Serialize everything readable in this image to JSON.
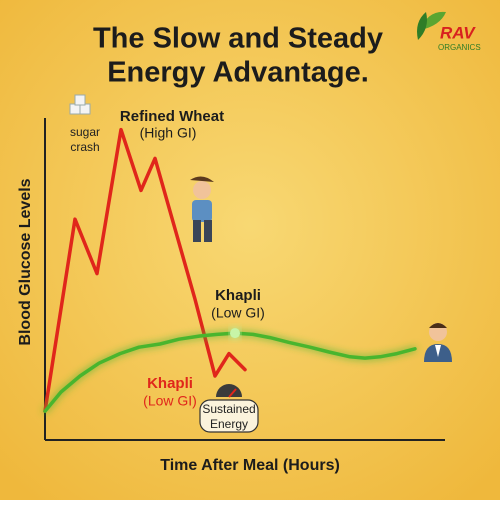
{
  "chart_data": {
    "type": "line",
    "title": [
      "The Slow and Steady",
      "Energy Advantage."
    ],
    "logo": [
      "RAV",
      "ORGANICS"
    ],
    "x_label": "Time After Meal (Hours)",
    "y_label": "Blood Glucose Levels",
    "xlim": [
      0,
      100
    ],
    "ylim": [
      0,
      100
    ],
    "series": [
      {
        "name": "Refined Wheat",
        "note": "(High GI)",
        "color": "#e0261b",
        "x": [
          0,
          7.5,
          13,
          19,
          24,
          27.5,
          32.5,
          37.5,
          42.5,
          46,
          50
        ],
        "values": [
          9,
          69,
          52,
          97,
          78,
          88,
          66,
          44,
          20,
          27,
          22
        ]
      },
      {
        "name": "Khapli",
        "note": "(Low GI)",
        "color": "#3c9a2a",
        "x": [
          0,
          4,
          8.75,
          13.5,
          18.75,
          23.5,
          28.75,
          33.5,
          38.75,
          43,
          47.5,
          52,
          56.25,
          61,
          66.25,
          71,
          76.25,
          80,
          83.75,
          88,
          92.5
        ],
        "values": [
          9,
          15,
          20,
          24,
          27,
          29,
          30,
          31.5,
          32.5,
          33,
          33.4,
          33,
          32,
          30.5,
          29,
          27.5,
          26,
          25.6,
          26,
          27,
          28.5
        ]
      }
    ],
    "annotations": [
      {
        "lines": [
          "sugar",
          "crash"
        ],
        "color": "#222222"
      },
      {
        "lines": [
          "Khapli",
          "(Low GI)"
        ],
        "color": "#e0261b"
      },
      {
        "lines": [
          "Sustained",
          "Energy"
        ],
        "color": "#222222"
      }
    ]
  }
}
